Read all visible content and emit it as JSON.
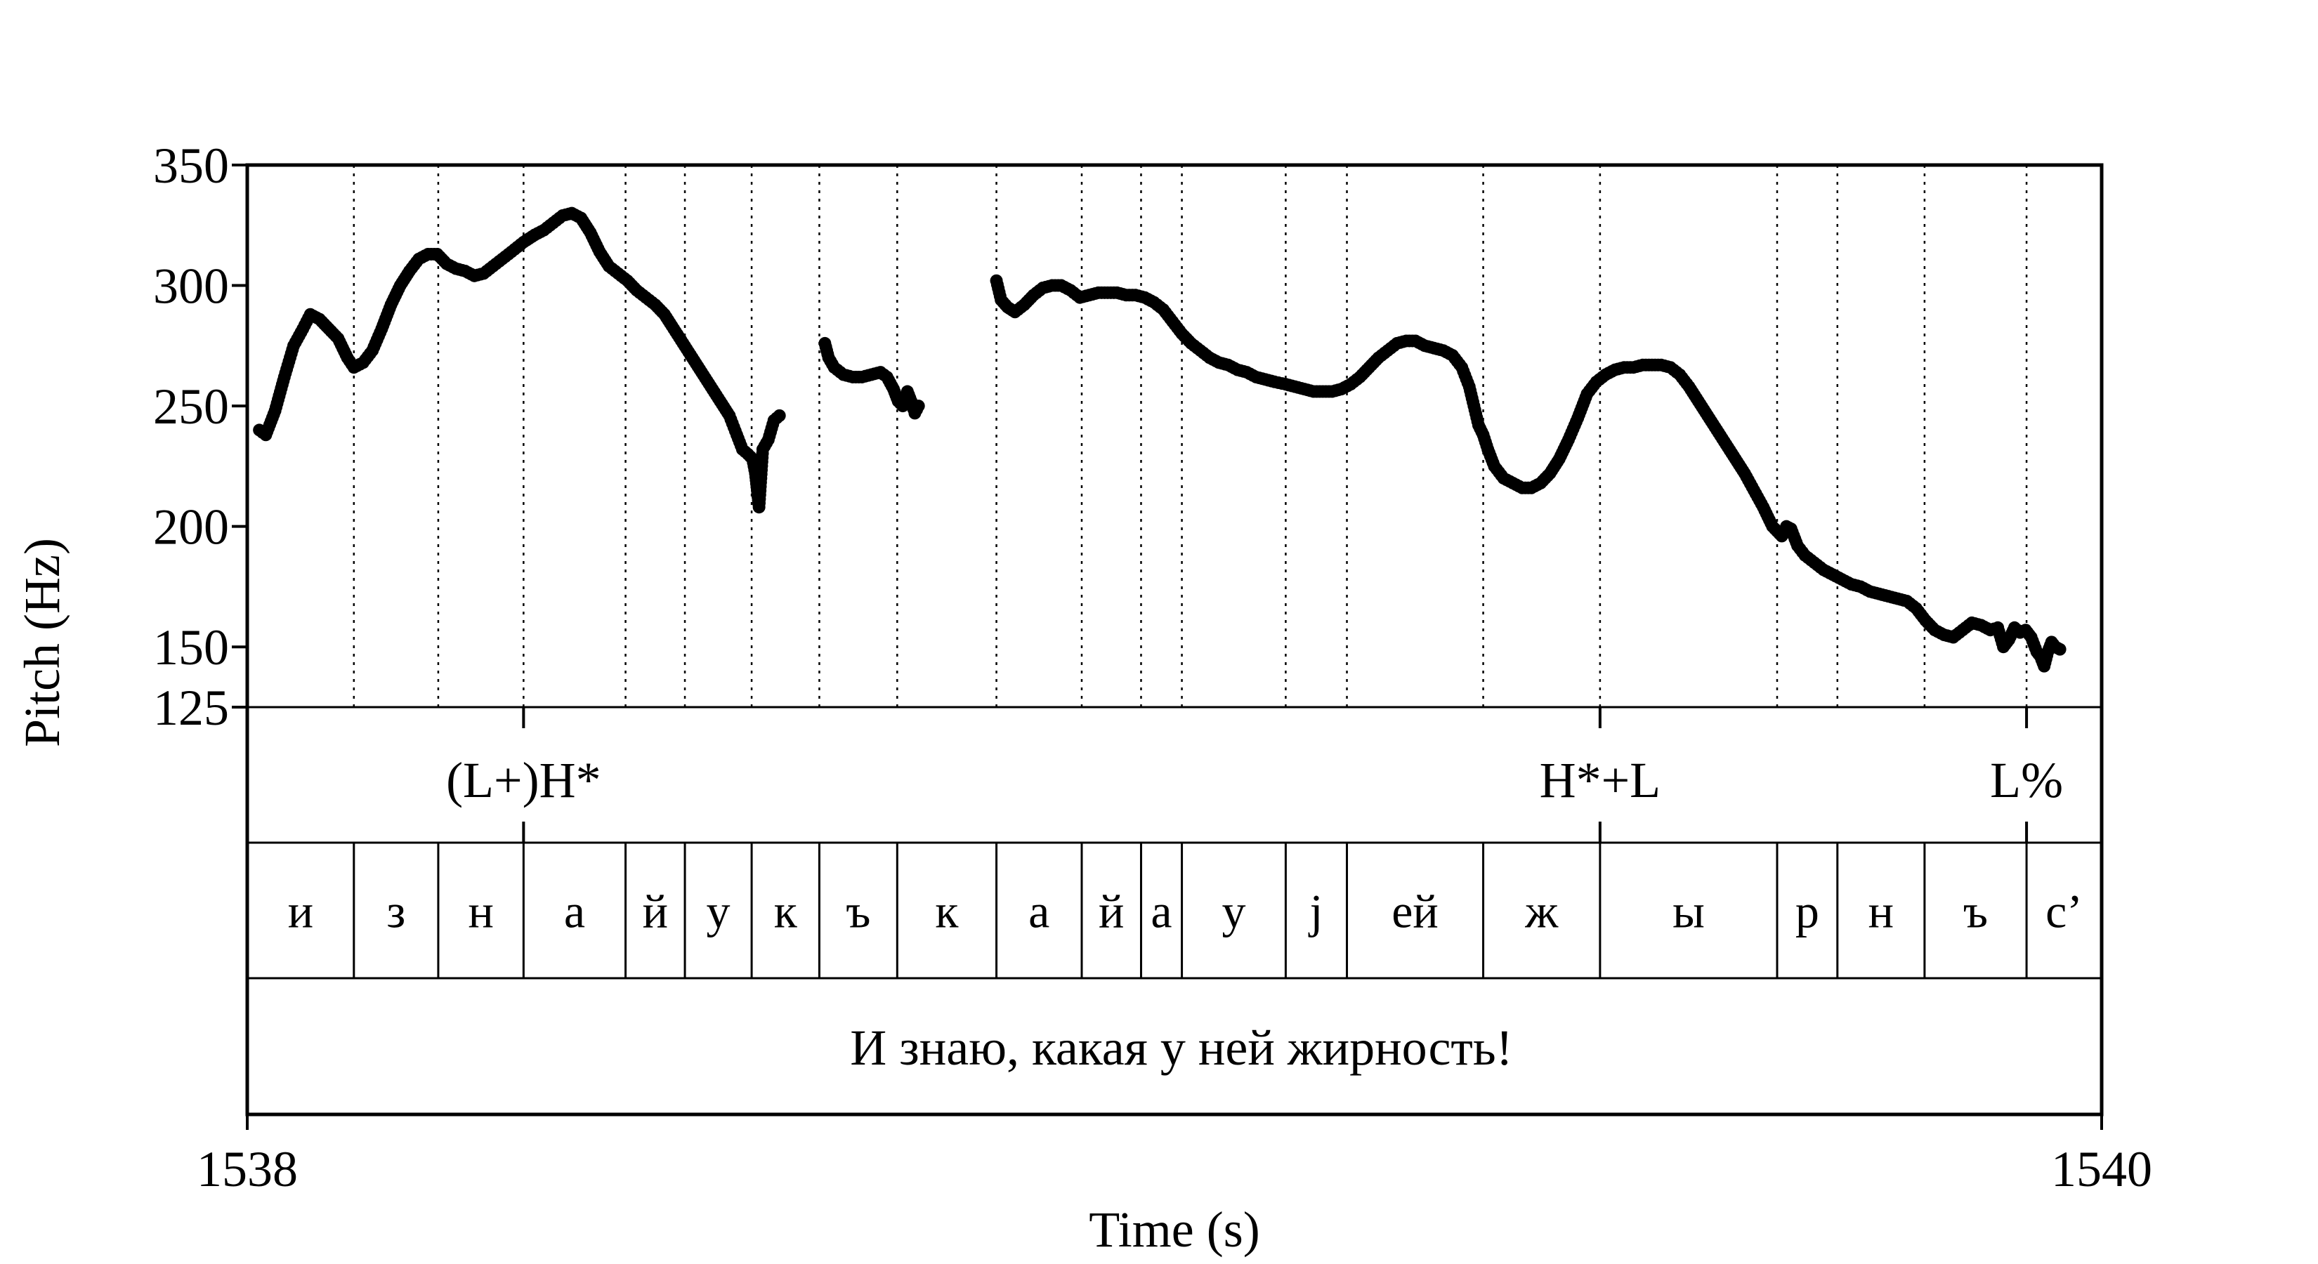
{
  "chart_data": {
    "type": "scatter",
    "xlabel": "Time (s)",
    "ylabel": "Pitch (Hz)",
    "xlim": [
      1538,
      1540
    ],
    "ylim": [
      125,
      350
    ],
    "x_ticks": [
      "1538",
      "1540"
    ],
    "y_ticks": [
      {
        "value": 125,
        "label": "125"
      },
      {
        "value": 150,
        "label": "150"
      },
      {
        "value": 200,
        "label": "200"
      },
      {
        "value": 250,
        "label": "250"
      },
      {
        "value": 300,
        "label": "300"
      },
      {
        "value": 350,
        "label": "350"
      }
    ],
    "grid": "dotted vertical lines at segment boundaries",
    "tones": [
      {
        "label": "(L+)H*",
        "time": 1538.298
      },
      {
        "label": "H*+L",
        "time": 1539.459
      },
      {
        "label": "L%",
        "time": 1539.919
      }
    ],
    "segments": [
      {
        "label": "и",
        "start": 1538.0,
        "end": 1538.115
      },
      {
        "label": "з",
        "start": 1538.115,
        "end": 1538.206
      },
      {
        "label": "н",
        "start": 1538.206,
        "end": 1538.298
      },
      {
        "label": "а",
        "start": 1538.298,
        "end": 1538.408
      },
      {
        "label": "й",
        "start": 1538.408,
        "end": 1538.472
      },
      {
        "label": "у",
        "start": 1538.472,
        "end": 1538.544
      },
      {
        "label": "к",
        "start": 1538.544,
        "end": 1538.617
      },
      {
        "label": "ъ",
        "start": 1538.617,
        "end": 1538.701
      },
      {
        "label": "к",
        "start": 1538.701,
        "end": 1538.808
      },
      {
        "label": "а",
        "start": 1538.808,
        "end": 1538.9
      },
      {
        "label": "й",
        "start": 1538.9,
        "end": 1538.964
      },
      {
        "label": "а",
        "start": 1538.964,
        "end": 1539.008
      },
      {
        "label": "у",
        "start": 1539.008,
        "end": 1539.12
      },
      {
        "label": "j",
        "start": 1539.12,
        "end": 1539.186
      },
      {
        "label": "ей",
        "start": 1539.186,
        "end": 1539.333
      },
      {
        "label": "ж",
        "start": 1539.333,
        "end": 1539.459
      },
      {
        "label": "ы",
        "start": 1539.459,
        "end": 1539.65
      },
      {
        "label": "р",
        "start": 1539.65,
        "end": 1539.715
      },
      {
        "label": "н",
        "start": 1539.715,
        "end": 1539.809
      },
      {
        "label": "ъ",
        "start": 1539.809,
        "end": 1539.919
      },
      {
        "label": "с’",
        "start": 1539.919,
        "end": 1540.0
      }
    ],
    "sentence": "И знаю, какая у ней жирность!",
    "series": [
      {
        "points": [
          [
            1538.013,
            240
          ],
          [
            1538.02,
            238
          ],
          [
            1538.03,
            248
          ],
          [
            1538.04,
            262
          ],
          [
            1538.05,
            275
          ],
          [
            1538.06,
            282
          ],
          [
            1538.068,
            288
          ],
          [
            1538.078,
            286
          ],
          [
            1538.088,
            282
          ],
          [
            1538.098,
            278
          ],
          [
            1538.108,
            270
          ],
          [
            1538.115,
            266
          ],
          [
            1538.125,
            268
          ],
          [
            1538.135,
            273
          ],
          [
            1538.145,
            282
          ],
          [
            1538.155,
            292
          ],
          [
            1538.165,
            300
          ],
          [
            1538.175,
            306
          ],
          [
            1538.185,
            311
          ],
          [
            1538.195,
            313
          ],
          [
            1538.205,
            313
          ],
          [
            1538.215,
            309
          ],
          [
            1538.225,
            307
          ],
          [
            1538.235,
            306
          ],
          [
            1538.245,
            304
          ],
          [
            1538.255,
            305
          ],
          [
            1538.265,
            308
          ],
          [
            1538.275,
            311
          ],
          [
            1538.285,
            314
          ],
          [
            1538.298,
            318
          ],
          [
            1538.31,
            321
          ],
          [
            1538.32,
            323
          ],
          [
            1538.33,
            326
          ],
          [
            1538.34,
            329
          ],
          [
            1538.35,
            330
          ],
          [
            1538.36,
            328
          ],
          [
            1538.37,
            322
          ],
          [
            1538.38,
            314
          ],
          [
            1538.39,
            308
          ],
          [
            1538.4,
            305
          ],
          [
            1538.41,
            302
          ],
          [
            1538.42,
            298
          ],
          [
            1538.43,
            295
          ],
          [
            1538.44,
            292
          ],
          [
            1538.45,
            288
          ],
          [
            1538.46,
            282
          ],
          [
            1538.47,
            276
          ],
          [
            1538.48,
            270
          ],
          [
            1538.49,
            264
          ],
          [
            1538.5,
            258
          ],
          [
            1538.51,
            252
          ],
          [
            1538.52,
            246
          ],
          [
            1538.528,
            238
          ],
          [
            1538.534,
            232
          ],
          [
            1538.54,
            230
          ],
          [
            1538.545,
            228
          ],
          [
            1538.548,
            222
          ],
          [
            1538.55,
            215
          ],
          [
            1538.552,
            208
          ],
          [
            1538.556,
            232
          ],
          [
            1538.562,
            236
          ],
          [
            1538.568,
            244
          ],
          [
            1538.574,
            246
          ]
        ]
      },
      {
        "points": [
          [
            1538.623,
            276
          ],
          [
            1538.627,
            270
          ],
          [
            1538.633,
            266
          ],
          [
            1538.643,
            263
          ],
          [
            1538.653,
            262
          ],
          [
            1538.663,
            262
          ],
          [
            1538.673,
            263
          ],
          [
            1538.683,
            264
          ],
          [
            1538.69,
            262
          ],
          [
            1538.697,
            257
          ],
          [
            1538.702,
            252
          ],
          [
            1538.707,
            250
          ],
          [
            1538.712,
            256
          ],
          [
            1538.716,
            252
          ],
          [
            1538.72,
            247
          ],
          [
            1538.724,
            250
          ]
        ]
      },
      {
        "points": [
          [
            1538.808,
            302
          ],
          [
            1538.813,
            294
          ],
          [
            1538.82,
            291
          ],
          [
            1538.828,
            289
          ],
          [
            1538.838,
            292
          ],
          [
            1538.848,
            296
          ],
          [
            1538.858,
            299
          ],
          [
            1538.868,
            300
          ],
          [
            1538.878,
            300
          ],
          [
            1538.888,
            298
          ],
          [
            1538.898,
            295
          ],
          [
            1538.908,
            296
          ],
          [
            1538.918,
            297
          ],
          [
            1538.928,
            297
          ],
          [
            1538.938,
            297
          ],
          [
            1538.948,
            296
          ],
          [
            1538.958,
            296
          ],
          [
            1538.968,
            295
          ],
          [
            1538.978,
            293
          ],
          [
            1538.988,
            290
          ],
          [
            1538.998,
            285
          ],
          [
            1539.008,
            280
          ],
          [
            1539.018,
            276
          ],
          [
            1539.028,
            273
          ],
          [
            1539.038,
            270
          ],
          [
            1539.048,
            268
          ],
          [
            1539.058,
            267
          ],
          [
            1539.068,
            265
          ],
          [
            1539.078,
            264
          ],
          [
            1539.088,
            262
          ],
          [
            1539.098,
            261
          ],
          [
            1539.108,
            260
          ],
          [
            1539.12,
            259
          ],
          [
            1539.13,
            258
          ],
          [
            1539.14,
            257
          ],
          [
            1539.15,
            256
          ],
          [
            1539.16,
            256
          ],
          [
            1539.17,
            256
          ],
          [
            1539.18,
            257
          ],
          [
            1539.19,
            259
          ],
          [
            1539.2,
            262
          ],
          [
            1539.21,
            266
          ],
          [
            1539.22,
            270
          ],
          [
            1539.23,
            273
          ],
          [
            1539.24,
            276
          ],
          [
            1539.25,
            277
          ],
          [
            1539.26,
            277
          ],
          [
            1539.27,
            275
          ],
          [
            1539.28,
            274
          ],
          [
            1539.29,
            273
          ],
          [
            1539.3,
            271
          ],
          [
            1539.31,
            266
          ],
          [
            1539.318,
            258
          ],
          [
            1539.323,
            250
          ],
          [
            1539.328,
            242
          ],
          [
            1539.333,
            238
          ],
          [
            1539.338,
            232
          ],
          [
            1539.345,
            225
          ],
          [
            1539.355,
            220
          ],
          [
            1539.365,
            218
          ],
          [
            1539.375,
            216
          ],
          [
            1539.385,
            216
          ],
          [
            1539.395,
            218
          ],
          [
            1539.405,
            222
          ],
          [
            1539.415,
            228
          ],
          [
            1539.425,
            236
          ],
          [
            1539.435,
            245
          ],
          [
            1539.445,
            255
          ],
          [
            1539.455,
            260
          ],
          [
            1539.465,
            263
          ],
          [
            1539.475,
            265
          ],
          [
            1539.485,
            266
          ],
          [
            1539.495,
            266
          ],
          [
            1539.505,
            267
          ],
          [
            1539.515,
            267
          ],
          [
            1539.525,
            267
          ],
          [
            1539.535,
            266
          ],
          [
            1539.545,
            263
          ],
          [
            1539.555,
            258
          ],
          [
            1539.565,
            252
          ],
          [
            1539.575,
            246
          ],
          [
            1539.585,
            240
          ],
          [
            1539.595,
            234
          ],
          [
            1539.605,
            228
          ],
          [
            1539.615,
            222
          ],
          [
            1539.625,
            215
          ],
          [
            1539.635,
            208
          ],
          [
            1539.645,
            200
          ],
          [
            1539.655,
            196
          ],
          [
            1539.66,
            200
          ],
          [
            1539.665,
            199
          ],
          [
            1539.672,
            192
          ],
          [
            1539.68,
            188
          ],
          [
            1539.69,
            185
          ],
          [
            1539.7,
            182
          ],
          [
            1539.71,
            180
          ],
          [
            1539.72,
            178
          ],
          [
            1539.73,
            176
          ],
          [
            1539.74,
            175
          ],
          [
            1539.75,
            173
          ],
          [
            1539.76,
            172
          ],
          [
            1539.77,
            171
          ],
          [
            1539.78,
            170
          ],
          [
            1539.79,
            169
          ],
          [
            1539.8,
            166
          ],
          [
            1539.81,
            161
          ],
          [
            1539.82,
            157
          ],
          [
            1539.83,
            155
          ],
          [
            1539.84,
            154
          ],
          [
            1539.85,
            157
          ],
          [
            1539.86,
            160
          ],
          [
            1539.87,
            159
          ],
          [
            1539.88,
            157
          ],
          [
            1539.888,
            158
          ],
          [
            1539.894,
            150
          ],
          [
            1539.9,
            153
          ],
          [
            1539.906,
            158
          ],
          [
            1539.912,
            156
          ],
          [
            1539.918,
            157
          ],
          [
            1539.924,
            154
          ],
          [
            1539.93,
            148
          ],
          [
            1539.934,
            146
          ],
          [
            1539.938,
            142
          ],
          [
            1539.942,
            148
          ],
          [
            1539.946,
            152
          ],
          [
            1539.95,
            150
          ],
          [
            1539.955,
            149
          ]
        ]
      }
    ]
  }
}
